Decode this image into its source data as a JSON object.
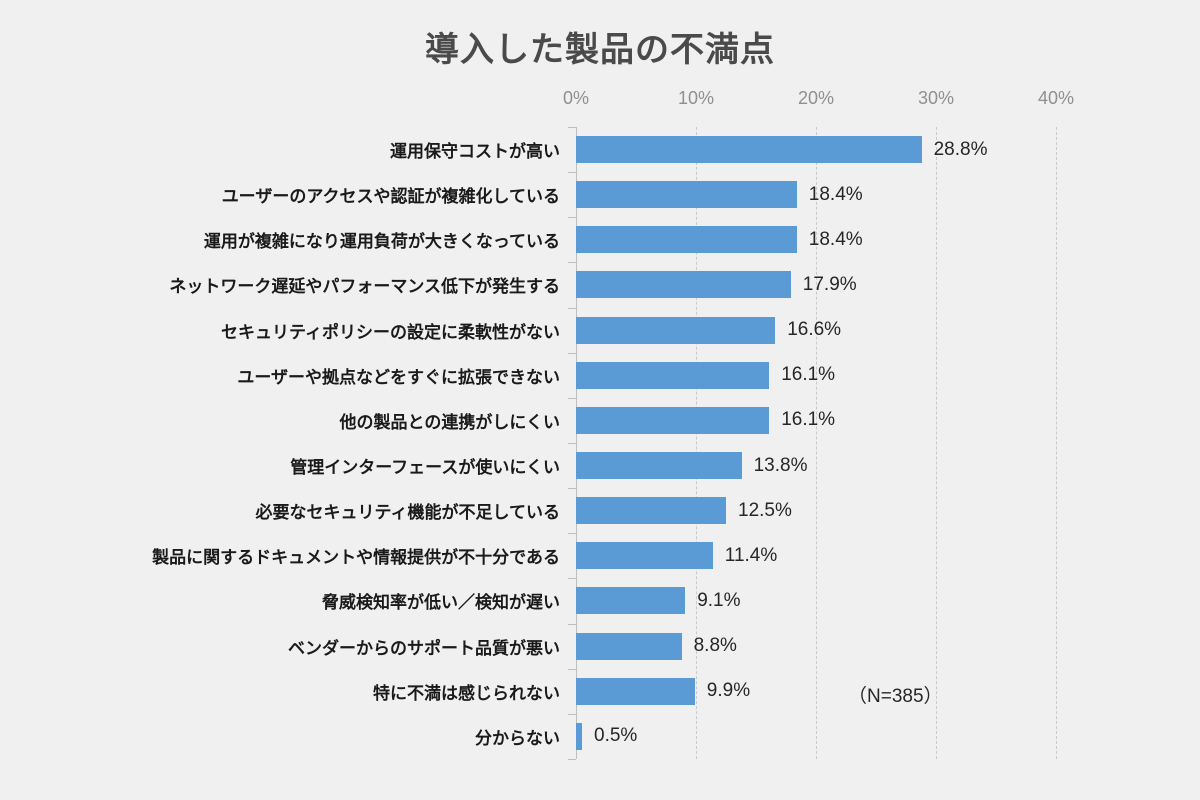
{
  "title": "導入した製品の不満点",
  "annotation": "（N=385）",
  "colors": {
    "background": "#f0f0f0",
    "bar": "#5B9BD5",
    "gridline": "#c9c9c9",
    "axis": "#bfbfbf",
    "title_text": "#4a4a4a",
    "category_text": "#1a1a1a",
    "value_text": "#262626",
    "tick_text": "#8f8f8f"
  },
  "chart_data": {
    "type": "bar",
    "orientation": "horizontal",
    "title": "導入した製品の不満点",
    "categories": [
      "運用保守コストが高い",
      "ユーザーのアクセスや認証が複雑化している",
      "運用が複雑になり運用負荷が大きくなっている",
      "ネットワーク遅延やパフォーマンス低下が発生する",
      "セキュリティポリシーの設定に柔軟性がない",
      "ユーザーや拠点などをすぐに拡張できない",
      "他の製品との連携がしにくい",
      "管理インターフェースが使いにくい",
      "必要なセキュリティ機能が不足している",
      "製品に関するドキュメントや情報提供が不十分である",
      "脅威検知率が低い／検知が遅い",
      "ベンダーからのサポート品質が悪い",
      "特に不満は感じられない",
      "分からない"
    ],
    "values": [
      28.8,
      18.4,
      18.4,
      17.9,
      16.6,
      16.1,
      16.1,
      13.8,
      12.5,
      11.4,
      9.1,
      8.8,
      9.9,
      0.5
    ],
    "value_labels": [
      "28.8%",
      "18.4%",
      "18.4%",
      "17.9%",
      "16.6%",
      "16.1%",
      "16.1%",
      "13.8%",
      "12.5%",
      "11.4%",
      "9.1%",
      "8.8%",
      "9.9%",
      "0.5%"
    ],
    "x_ticks": [
      "0%",
      "10%",
      "20%",
      "30%",
      "40%"
    ],
    "xlim": [
      0,
      40
    ],
    "grid": "vertical-dashed",
    "legend": "none",
    "bar_color": "#5B9BD5",
    "annotation": "（N=385）",
    "sample_size": 385
  }
}
